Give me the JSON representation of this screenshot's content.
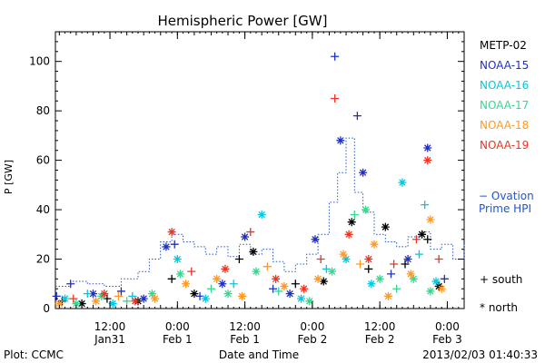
{
  "chart_data": {
    "type": "scatter",
    "title": "Hemispheric Power [GW]",
    "xlabel": "Date and Time",
    "ylabel": "P [GW]",
    "ylim": [
      0,
      112
    ],
    "yticks": [
      0,
      20,
      40,
      60,
      80,
      100
    ],
    "x_unit": "hours since 2013-01-31 00:00 UT",
    "xlim": [
      2.3,
      75.0
    ],
    "xticks": [
      {
        "x": 12,
        "top": "12:00",
        "bottom": "Jan31"
      },
      {
        "x": 24,
        "top": "0:00",
        "bottom": "Feb 1"
      },
      {
        "x": 36,
        "top": "12:00",
        "bottom": "Feb 1"
      },
      {
        "x": 48,
        "top": "0:00",
        "bottom": "Feb 2"
      },
      {
        "x": 60,
        "top": "12:00",
        "bottom": "Feb 2"
      },
      {
        "x": 72,
        "top": "0:00",
        "bottom": "Feb 3"
      }
    ],
    "grid": false,
    "series": [
      {
        "name": "METP-02",
        "color": "#000000",
        "points": [
          {
            "x": 3.5,
            "y": 3,
            "m": "+"
          },
          {
            "x": 7.0,
            "y": 2,
            "m": "*"
          },
          {
            "x": 11.5,
            "y": 4,
            "m": "+"
          },
          {
            "x": 17.0,
            "y": 3,
            "m": "*"
          },
          {
            "x": 23.0,
            "y": 12,
            "m": "+"
          },
          {
            "x": 27.0,
            "y": 6,
            "m": "*"
          },
          {
            "x": 35.0,
            "y": 20,
            "m": "+"
          },
          {
            "x": 37.5,
            "y": 23,
            "m": "*"
          },
          {
            "x": 45.0,
            "y": 10,
            "m": "+"
          },
          {
            "x": 50.0,
            "y": 11,
            "m": "*"
          },
          {
            "x": 55.0,
            "y": 35,
            "m": "*"
          },
          {
            "x": 58.0,
            "y": 16,
            "m": "+"
          },
          {
            "x": 61.0,
            "y": 33,
            "m": "*"
          },
          {
            "x": 64.5,
            "y": 18,
            "m": "+"
          },
          {
            "x": 67.5,
            "y": 30,
            "m": "*"
          },
          {
            "x": 68.5,
            "y": 28,
            "m": "+"
          },
          {
            "x": 70.5,
            "y": 9,
            "m": "*"
          }
        ]
      },
      {
        "name": "NOAA-15",
        "color": "#1f2fbf",
        "points": [
          {
            "x": 2.5,
            "y": 5,
            "m": "+"
          },
          {
            "x": 5.0,
            "y": 10,
            "m": "+"
          },
          {
            "x": 9.0,
            "y": 6,
            "m": "*"
          },
          {
            "x": 14.0,
            "y": 7,
            "m": "+"
          },
          {
            "x": 18.0,
            "y": 4,
            "m": "*"
          },
          {
            "x": 22.0,
            "y": 25,
            "m": "*"
          },
          {
            "x": 23.5,
            "y": 26,
            "m": "+"
          },
          {
            "x": 28.0,
            "y": 5,
            "m": "+"
          },
          {
            "x": 32.0,
            "y": 10,
            "m": "*"
          },
          {
            "x": 36.0,
            "y": 29,
            "m": "*"
          },
          {
            "x": 41.0,
            "y": 8,
            "m": "+"
          },
          {
            "x": 44.0,
            "y": 6,
            "m": "*"
          },
          {
            "x": 48.5,
            "y": 28,
            "m": "*"
          },
          {
            "x": 52.0,
            "y": 102,
            "m": "+"
          },
          {
            "x": 53.0,
            "y": 68,
            "m": "*"
          },
          {
            "x": 56.0,
            "y": 78,
            "m": "+"
          },
          {
            "x": 57.0,
            "y": 55,
            "m": "*"
          },
          {
            "x": 62.0,
            "y": 14,
            "m": "+"
          },
          {
            "x": 65.0,
            "y": 20,
            "m": "*"
          },
          {
            "x": 68.5,
            "y": 65,
            "m": "*"
          },
          {
            "x": 71.5,
            "y": 12,
            "m": "+"
          }
        ]
      },
      {
        "name": "NOAA-16",
        "color": "#00c8e0",
        "points": [
          {
            "x": 4.0,
            "y": 4,
            "m": "*"
          },
          {
            "x": 8.0,
            "y": 6,
            "m": "+"
          },
          {
            "x": 12.5,
            "y": 2,
            "m": "*"
          },
          {
            "x": 16.0,
            "y": 5,
            "m": "+"
          },
          {
            "x": 24.0,
            "y": 20,
            "m": "*"
          },
          {
            "x": 29.0,
            "y": 4,
            "m": "*"
          },
          {
            "x": 34.0,
            "y": 10,
            "m": "+"
          },
          {
            "x": 39.0,
            "y": 38,
            "m": "*"
          },
          {
            "x": 46.0,
            "y": 4,
            "m": "*"
          },
          {
            "x": 50.5,
            "y": 16,
            "m": "+"
          },
          {
            "x": 54.0,
            "y": 20,
            "m": "*"
          },
          {
            "x": 58.5,
            "y": 10,
            "m": "*"
          },
          {
            "x": 64.0,
            "y": 51,
            "m": "*"
          },
          {
            "x": 67.0,
            "y": 22,
            "m": "+"
          },
          {
            "x": 68.0,
            "y": 42,
            "m": "+"
          },
          {
            "x": 70.0,
            "y": 11,
            "m": "*"
          }
        ]
      },
      {
        "name": "NOAA-17",
        "color": "#33d98c",
        "points": [
          {
            "x": 6.0,
            "y": 2,
            "m": "*"
          },
          {
            "x": 10.5,
            "y": 5,
            "m": "*"
          },
          {
            "x": 15.0,
            "y": 3,
            "m": "+"
          },
          {
            "x": 19.5,
            "y": 6,
            "m": "*"
          },
          {
            "x": 24.5,
            "y": 14,
            "m": "*"
          },
          {
            "x": 30.0,
            "y": 8,
            "m": "+"
          },
          {
            "x": 33.0,
            "y": 6,
            "m": "*"
          },
          {
            "x": 38.0,
            "y": 15,
            "m": "*"
          },
          {
            "x": 42.0,
            "y": 7,
            "m": "+"
          },
          {
            "x": 47.5,
            "y": 3,
            "m": "*"
          },
          {
            "x": 51.5,
            "y": 15,
            "m": "*"
          },
          {
            "x": 55.5,
            "y": 38,
            "m": "+"
          },
          {
            "x": 57.5,
            "y": 40,
            "m": "*"
          },
          {
            "x": 60.0,
            "y": 12,
            "m": "*"
          },
          {
            "x": 63.0,
            "y": 8,
            "m": "+"
          },
          {
            "x": 66.0,
            "y": 12,
            "m": "*"
          },
          {
            "x": 69.0,
            "y": 7,
            "m": "*"
          }
        ]
      },
      {
        "name": "NOAA-18",
        "color": "#ff9922",
        "points": [
          {
            "x": 3.0,
            "y": 2,
            "m": "*"
          },
          {
            "x": 9.5,
            "y": 3,
            "m": "*"
          },
          {
            "x": 13.5,
            "y": 5,
            "m": "+"
          },
          {
            "x": 20.0,
            "y": 4,
            "m": "*"
          },
          {
            "x": 25.5,
            "y": 10,
            "m": "*"
          },
          {
            "x": 31.0,
            "y": 12,
            "m": "*"
          },
          {
            "x": 35.5,
            "y": 5,
            "m": "*"
          },
          {
            "x": 40.0,
            "y": 17,
            "m": "+"
          },
          {
            "x": 43.0,
            "y": 9,
            "m": "*"
          },
          {
            "x": 49.0,
            "y": 12,
            "m": "*"
          },
          {
            "x": 53.5,
            "y": 22,
            "m": "*"
          },
          {
            "x": 56.5,
            "y": 18,
            "m": "+"
          },
          {
            "x": 59.0,
            "y": 26,
            "m": "*"
          },
          {
            "x": 61.5,
            "y": 5,
            "m": "*"
          },
          {
            "x": 65.5,
            "y": 14,
            "m": "*"
          },
          {
            "x": 69.0,
            "y": 36,
            "m": "*"
          },
          {
            "x": 71.0,
            "y": 8,
            "m": "*"
          }
        ]
      },
      {
        "name": "NOAA-19",
        "color": "#ee3322",
        "points": [
          {
            "x": 5.5,
            "y": 4,
            "m": "+"
          },
          {
            "x": 11.0,
            "y": 6,
            "m": "*"
          },
          {
            "x": 16.5,
            "y": 3,
            "m": "*"
          },
          {
            "x": 23.0,
            "y": 31,
            "m": "*"
          },
          {
            "x": 26.5,
            "y": 15,
            "m": "+"
          },
          {
            "x": 32.5,
            "y": 16,
            "m": "*"
          },
          {
            "x": 37.0,
            "y": 31,
            "m": "+"
          },
          {
            "x": 41.5,
            "y": 12,
            "m": "*"
          },
          {
            "x": 46.5,
            "y": 8,
            "m": "*"
          },
          {
            "x": 49.5,
            "y": 20,
            "m": "+"
          },
          {
            "x": 52.0,
            "y": 85,
            "m": "+"
          },
          {
            "x": 54.5,
            "y": 30,
            "m": "*"
          },
          {
            "x": 58.0,
            "y": 20,
            "m": "*"
          },
          {
            "x": 62.5,
            "y": 18,
            "m": "+"
          },
          {
            "x": 66.5,
            "y": 28,
            "m": "+"
          },
          {
            "x": 68.5,
            "y": 60,
            "m": "*"
          },
          {
            "x": 70.5,
            "y": 20,
            "m": "+"
          }
        ]
      }
    ],
    "ovation": {
      "name": "− Ovation Prime HPI",
      "label_line1": "− Ovation",
      "label_line2": "Prime HPI",
      "color": "#2255cc",
      "step_x": [
        2.3,
        5,
        8,
        11,
        14,
        17,
        19,
        21,
        23,
        25,
        27,
        29,
        31,
        33,
        35,
        37,
        39,
        41,
        43,
        45,
        47,
        49,
        51,
        52.5,
        54,
        55.5,
        57,
        59,
        61,
        63,
        65,
        67,
        69,
        71,
        73,
        75
      ],
      "step_y": [
        9,
        11,
        10,
        9,
        12,
        15,
        20,
        27,
        30,
        27,
        25,
        22,
        25,
        21,
        26,
        22,
        24,
        19,
        15,
        18,
        22,
        30,
        43,
        55,
        69,
        47,
        39,
        30,
        27,
        25,
        29,
        31,
        24,
        26,
        20,
        26
      ]
    },
    "marker_legend": {
      "plus": "+ south",
      "star": "* north"
    }
  },
  "footer": {
    "left": "Plot: CCMC",
    "right": "2013/02/03 01:40:33"
  }
}
